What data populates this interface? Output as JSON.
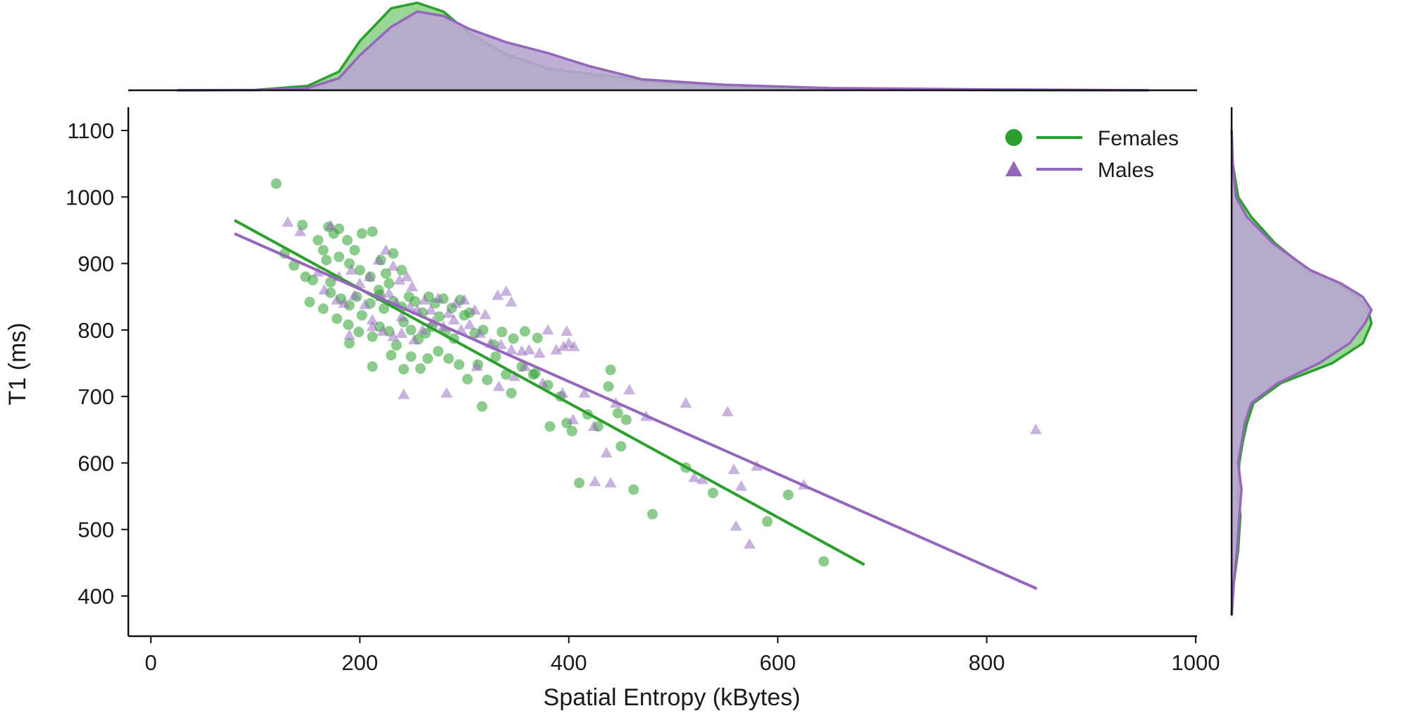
{
  "chart_data": {
    "type": "scatter",
    "xlabel": "Spatial Entropy (kBytes)",
    "ylabel": "T1 (ms)",
    "xlim": [
      -20,
      1000
    ],
    "ylim": [
      340,
      1130
    ],
    "xticks": [
      0,
      200,
      400,
      600,
      800,
      1000
    ],
    "yticks": [
      400,
      500,
      600,
      700,
      800,
      900,
      1000,
      1100
    ],
    "xtick_labels": [
      "0",
      "200",
      "400",
      "600",
      "800",
      "1000"
    ],
    "ytick_labels": [
      "400",
      "500",
      "600",
      "700",
      "800",
      "900",
      "1000",
      "1100"
    ],
    "legend": {
      "placement": "top-right",
      "entries": [
        "Females",
        "Males"
      ]
    },
    "series": [
      {
        "name": "Females",
        "color": "#2ca02c",
        "marker": "circle",
        "regression": {
          "x": [
            80,
            683
          ],
          "y": [
            965,
            447
          ]
        },
        "points": [
          [
            120,
            1020
          ],
          [
            145,
            958
          ],
          [
            160,
            935
          ],
          [
            170,
            955
          ],
          [
            175,
            945
          ],
          [
            180,
            952
          ],
          [
            188,
            935
          ],
          [
            195,
            920
          ],
          [
            202,
            945
          ],
          [
            212,
            948
          ],
          [
            232,
            915
          ],
          [
            128,
            915
          ],
          [
            137,
            897
          ],
          [
            148,
            880
          ],
          [
            155,
            875
          ],
          [
            168,
            905
          ],
          [
            165,
            920
          ],
          [
            172,
            872
          ],
          [
            180,
            910
          ],
          [
            190,
            900
          ],
          [
            200,
            890
          ],
          [
            210,
            880
          ],
          [
            220,
            905
          ],
          [
            225,
            885
          ],
          [
            240,
            890
          ],
          [
            228,
            870
          ],
          [
            218,
            860
          ],
          [
            152,
            842
          ],
          [
            165,
            832
          ],
          [
            172,
            856
          ],
          [
            182,
            847
          ],
          [
            190,
            837
          ],
          [
            197,
            850
          ],
          [
            202,
            822
          ],
          [
            210,
            840
          ],
          [
            219,
            853
          ],
          [
            223,
            832
          ],
          [
            232,
            843
          ],
          [
            240,
            835
          ],
          [
            247,
            850
          ],
          [
            253,
            843
          ],
          [
            260,
            826
          ],
          [
            266,
            850
          ],
          [
            272,
            840
          ],
          [
            280,
            847
          ],
          [
            288,
            833
          ],
          [
            296,
            845
          ],
          [
            305,
            826
          ],
          [
            178,
            817
          ],
          [
            189,
            808
          ],
          [
            199,
            797
          ],
          [
            212,
            790
          ],
          [
            219,
            805
          ],
          [
            228,
            798
          ],
          [
            235,
            777
          ],
          [
            242,
            812
          ],
          [
            249,
            800
          ],
          [
            256,
            786
          ],
          [
            263,
            795
          ],
          [
            269,
            805
          ],
          [
            276,
            820
          ],
          [
            282,
            798
          ],
          [
            290,
            787
          ],
          [
            300,
            822
          ],
          [
            310,
            795
          ],
          [
            318,
            800
          ],
          [
            328,
            778
          ],
          [
            336,
            797
          ],
          [
            347,
            787
          ],
          [
            358,
            798
          ],
          [
            370,
            788
          ],
          [
            190,
            780
          ],
          [
            212,
            745
          ],
          [
            230,
            762
          ],
          [
            242,
            741
          ],
          [
            249,
            760
          ],
          [
            258,
            742
          ],
          [
            265,
            757
          ],
          [
            275,
            768
          ],
          [
            285,
            757
          ],
          [
            295,
            748
          ],
          [
            303,
            726
          ],
          [
            313,
            748
          ],
          [
            322,
            725
          ],
          [
            330,
            760
          ],
          [
            340,
            733
          ],
          [
            355,
            745
          ],
          [
            368,
            735
          ],
          [
            380,
            717
          ],
          [
            317,
            685
          ],
          [
            345,
            705
          ],
          [
            366,
            733
          ],
          [
            382,
            655
          ],
          [
            392,
            700
          ],
          [
            398,
            660
          ],
          [
            403,
            648
          ],
          [
            418,
            673
          ],
          [
            428,
            655
          ],
          [
            438,
            715
          ],
          [
            447,
            675
          ],
          [
            450,
            625
          ],
          [
            455,
            665
          ],
          [
            512,
            593
          ],
          [
            538,
            555
          ],
          [
            410,
            570
          ],
          [
            440,
            740
          ],
          [
            462,
            560
          ],
          [
            480,
            523
          ],
          [
            590,
            512
          ],
          [
            610,
            552
          ],
          [
            644,
            452
          ]
        ]
      },
      {
        "name": "Males",
        "color": "#9467bd",
        "marker": "triangle",
        "regression": {
          "x": [
            80,
            848
          ],
          "y": [
            945,
            411
          ]
        },
        "points": [
          [
            131,
            962
          ],
          [
            143,
            948
          ],
          [
            172,
            957
          ],
          [
            160,
            887
          ],
          [
            180,
            880
          ],
          [
            192,
            890
          ],
          [
            200,
            870
          ],
          [
            209,
            880
          ],
          [
            218,
            905
          ],
          [
            225,
            920
          ],
          [
            232,
            896
          ],
          [
            238,
            875
          ],
          [
            245,
            880
          ],
          [
            250,
            865
          ],
          [
            166,
            860
          ],
          [
            178,
            845
          ],
          [
            185,
            840
          ],
          [
            195,
            852
          ],
          [
            205,
            838
          ],
          [
            212,
            815
          ],
          [
            220,
            850
          ],
          [
            228,
            855
          ],
          [
            235,
            840
          ],
          [
            240,
            820
          ],
          [
            248,
            835
          ],
          [
            255,
            830
          ],
          [
            262,
            845
          ],
          [
            268,
            830
          ],
          [
            275,
            848
          ],
          [
            285,
            825
          ],
          [
            292,
            840
          ],
          [
            300,
            845
          ],
          [
            310,
            830
          ],
          [
            320,
            823
          ],
          [
            332,
            852
          ],
          [
            340,
            858
          ],
          [
            345,
            842
          ],
          [
            190,
            792
          ],
          [
            212,
            805
          ],
          [
            222,
            798
          ],
          [
            232,
            790
          ],
          [
            240,
            795
          ],
          [
            252,
            785
          ],
          [
            260,
            800
          ],
          [
            270,
            812
          ],
          [
            280,
            805
          ],
          [
            290,
            815
          ],
          [
            297,
            800
          ],
          [
            305,
            808
          ],
          [
            315,
            795
          ],
          [
            325,
            780
          ],
          [
            335,
            778
          ],
          [
            345,
            770
          ],
          [
            355,
            768
          ],
          [
            362,
            770
          ],
          [
            372,
            765
          ],
          [
            380,
            800
          ],
          [
            388,
            770
          ],
          [
            395,
            775
          ],
          [
            400,
            780
          ],
          [
            405,
            775
          ],
          [
            398,
            798
          ],
          [
            242,
            703
          ],
          [
            283,
            705
          ],
          [
            312,
            745
          ],
          [
            333,
            715
          ],
          [
            348,
            730
          ],
          [
            358,
            745
          ],
          [
            375,
            720
          ],
          [
            394,
            705
          ],
          [
            404,
            665
          ],
          [
            415,
            705
          ],
          [
            424,
            655
          ],
          [
            436,
            615
          ],
          [
            445,
            690
          ],
          [
            458,
            710
          ],
          [
            474,
            670
          ],
          [
            512,
            690
          ],
          [
            520,
            578
          ],
          [
            528,
            575
          ],
          [
            552,
            677
          ],
          [
            558,
            590
          ],
          [
            565,
            565
          ],
          [
            580,
            595
          ],
          [
            573,
            478
          ],
          [
            560,
            505
          ],
          [
            625,
            567
          ],
          [
            425,
            572
          ],
          [
            440,
            570
          ],
          [
            847,
            650
          ]
        ]
      }
    ],
    "marginal_top": {
      "description": "kde of Spatial Entropy",
      "series": [
        {
          "name": "Females",
          "x": [
            25,
            100,
            150,
            180,
            200,
            230,
            255,
            280,
            305,
            340,
            380,
            420,
            470,
            550,
            650,
            800,
            955
          ],
          "density": [
            0,
            0.3,
            4,
            17,
            45,
            75,
            80,
            72,
            52,
            33,
            20,
            15,
            9,
            3,
            1,
            0.2,
            0
          ]
        },
        {
          "name": "Males",
          "x": [
            25,
            100,
            150,
            180,
            200,
            230,
            255,
            280,
            305,
            340,
            380,
            420,
            470,
            550,
            650,
            800,
            955
          ],
          "density": [
            0,
            0.2,
            2,
            11,
            32,
            58,
            72,
            68,
            56,
            44,
            34,
            22,
            10,
            5,
            2,
            0.8,
            0
          ]
        }
      ]
    },
    "marginal_right": {
      "description": "kde of T1",
      "series": [
        {
          "name": "Females",
          "y": [
            370,
            420,
            470,
            520,
            560,
            600,
            630,
            660,
            690,
            720,
            750,
            780,
            810,
            830,
            850,
            870,
            890,
            930,
            970,
            1000,
            1050,
            1100
          ],
          "density": [
            0,
            2,
            6,
            8,
            6,
            7,
            10,
            14,
            20,
            45,
            92,
            120,
            128,
            125,
            115,
            98,
            70,
            40,
            18,
            6,
            1,
            0
          ]
        },
        {
          "name": "Males",
          "y": [
            370,
            420,
            470,
            520,
            560,
            600,
            630,
            660,
            690,
            720,
            750,
            780,
            810,
            830,
            850,
            870,
            890,
            930,
            970,
            1000,
            1050,
            1100
          ],
          "density": [
            0,
            2,
            5,
            7,
            9,
            6,
            9,
            12,
            18,
            42,
            80,
            108,
            122,
            128,
            120,
            100,
            72,
            38,
            14,
            4,
            1,
            0
          ]
        }
      ]
    }
  }
}
